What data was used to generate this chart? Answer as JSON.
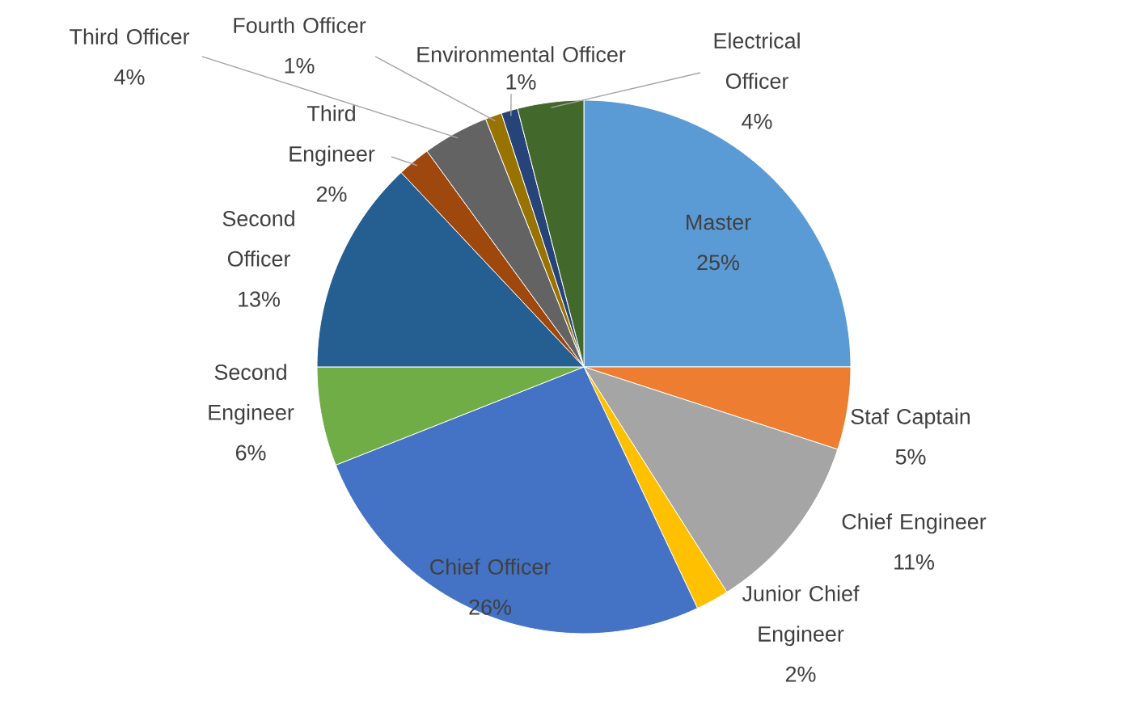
{
  "chart_data": {
    "type": "pie",
    "categories": [
      "Master",
      "Staf Captain",
      "Chief Engineer",
      "Junior Chief Engineer",
      "Chief Officer",
      "Second Engineer",
      "Second Officer",
      "Third Engineer",
      "Third Officer",
      "Fourth Officer",
      "Environmental Officer",
      "Electrical Officer"
    ],
    "values": [
      25,
      5,
      11,
      2,
      26,
      6,
      13,
      2,
      4,
      1,
      1,
      4
    ],
    "value_labels": [
      "25%",
      "5%",
      "11%",
      "2%",
      "26%",
      "6%",
      "13%",
      "2%",
      "4%",
      "1%",
      "1%",
      "4%"
    ],
    "colors": [
      "#5b9bd5",
      "#ed7d31",
      "#a5a5a5",
      "#ffc000",
      "#4472c4",
      "#70ad47",
      "#255e91",
      "#9e480e",
      "#636363",
      "#997300",
      "#264478",
      "#43682b"
    ],
    "legend": false
  }
}
